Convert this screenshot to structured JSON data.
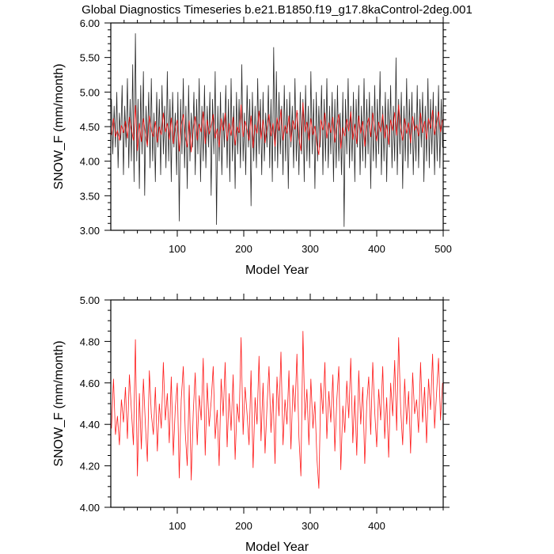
{
  "title": "Global Diagnostics Timeseries b.e21.B1850.f19_g17.8kaControl-2deg.001",
  "colors": {
    "monthly": "#000000",
    "annual": "#ff0000"
  },
  "chart_data": [
    {
      "type": "line",
      "xlabel": "Model Year",
      "ylabel": "SNOW_F (mm/month)",
      "xlim": [
        0,
        500
      ],
      "ylim": [
        3.0,
        6.0
      ],
      "x_ticks": [
        100,
        200,
        300,
        400,
        500
      ],
      "x_tick_labels": [
        "100",
        "200",
        "300",
        "400",
        "500"
      ],
      "y_ticks": [
        3.0,
        3.5,
        4.0,
        4.5,
        5.0,
        5.5,
        6.0
      ],
      "y_tick_labels": [
        "3.00",
        "3.50",
        "4.00",
        "4.50",
        "5.00",
        "5.50",
        "6.00"
      ],
      "grid": false,
      "series": [
        {
          "color": "#000000",
          "x_start": 1,
          "x_step": 2,
          "values": [
            4.9,
            4.1,
            4.8,
            4.2,
            5.0,
            3.9,
            4.7,
            4.3,
            5.1,
            3.8,
            4.8,
            4.2,
            5.2,
            3.9,
            4.9,
            4.0,
            5.4,
            3.7,
            5.85,
            4.0,
            4.9,
            3.6,
            5.1,
            4.1,
            5.3,
            3.5,
            4.8,
            4.2,
            5.0,
            3.9,
            5.2,
            4.0,
            4.7,
            3.7,
            5.0,
            4.2,
            4.9,
            3.8,
            5.1,
            4.1,
            4.8,
            3.9,
            5.3,
            4.0,
            4.9,
            3.7,
            5.0,
            4.2,
            4.7,
            3.8,
            5.0,
            3.13,
            4.9,
            4.1,
            5.2,
            3.9,
            4.8,
            3.6,
            5.1,
            4.0,
            4.7,
            4.2,
            5.0,
            3.8,
            4.9,
            4.1,
            5.2,
            3.7,
            4.8,
            4.0,
            5.1,
            3.9,
            4.8,
            4.2,
            5.0,
            3.5,
            4.9,
            4.1,
            5.3,
            3.08,
            4.8,
            4.0,
            5.0,
            3.8,
            4.7,
            4.2,
            5.1,
            3.9,
            4.9,
            3.7,
            5.2,
            4.0,
            4.8,
            3.6,
            5.0,
            4.1,
            4.9,
            3.9,
            5.4,
            4.0,
            4.7,
            3.8,
            5.1,
            4.2,
            4.9,
            3.35,
            5.0,
            4.0,
            4.8,
            3.9,
            5.2,
            4.1,
            4.9,
            3.8,
            5.0,
            4.0,
            4.7,
            4.2,
            5.1,
            3.9,
            4.9,
            3.7,
            5.65,
            4.0,
            5.3,
            3.9,
            5.0,
            4.1,
            4.8,
            3.8,
            5.1,
            4.0,
            4.9,
            3.6,
            5.0,
            4.2,
            4.8,
            3.9,
            5.2,
            4.0,
            4.7,
            3.8,
            5.0,
            4.1,
            4.9,
            3.7,
            5.1,
            4.0,
            4.8,
            3.9,
            5.3,
            4.1,
            4.9,
            3.6,
            5.0,
            4.0,
            4.8,
            4.2,
            5.1,
            3.8,
            4.9,
            4.0,
            5.2,
            3.9,
            4.8,
            4.1,
            5.0,
            3.7,
            4.9,
            3.9,
            5.1,
            4.0,
            4.7,
            3.8,
            5.0,
            3.05,
            4.9,
            4.1,
            5.2,
            3.9,
            4.8,
            4.0,
            5.0,
            3.7,
            4.9,
            4.2,
            5.1,
            3.8,
            4.8,
            4.0,
            5.2,
            3.9,
            4.9,
            4.1,
            5.0,
            3.6,
            4.8,
            4.0,
            5.1,
            3.9,
            4.9,
            4.1,
            5.3,
            3.8,
            4.8,
            4.0,
            5.0,
            3.7,
            4.9,
            4.2,
            5.1,
            3.9,
            4.8,
            4.0,
            5.5,
            3.8,
            4.9,
            4.1,
            5.0,
            3.6,
            4.8,
            4.0,
            5.2,
            3.9,
            4.9,
            4.1,
            5.0,
            3.8,
            4.7,
            4.0,
            5.1,
            3.9,
            4.9,
            4.2,
            5.0,
            3.7,
            4.8,
            4.0,
            5.2,
            3.9,
            4.9,
            4.1,
            5.0,
            3.8,
            4.8,
            4.0,
            5.1,
            3.9,
            4.9,
            4.2
          ]
        },
        {
          "color": "#ff0000",
          "x_start": 1,
          "x_step": 3,
          "ref": "annual"
        }
      ]
    },
    {
      "type": "line",
      "xlabel": "Model Year",
      "ylabel": "SNOW_F (mm/month)",
      "xlim": [
        0,
        500
      ],
      "ylim": [
        4.0,
        5.0
      ],
      "x_ticks": [
        100,
        200,
        300,
        400
      ],
      "x_tick_labels": [
        "100",
        "200",
        "300",
        "400"
      ],
      "y_ticks": [
        4.0,
        4.2,
        4.4,
        4.6,
        4.8,
        5.0
      ],
      "y_tick_labels": [
        "4.00",
        "4.20",
        "4.40",
        "4.60",
        "4.80",
        "5.00"
      ],
      "grid": false,
      "series": [
        {
          "color": "#ff0000",
          "x_start": 1,
          "x_step": 3,
          "values": [
            4.38,
            4.62,
            4.35,
            4.44,
            4.3,
            4.52,
            4.41,
            4.58,
            4.33,
            4.64,
            4.47,
            4.3,
            4.81,
            4.15,
            4.55,
            4.28,
            4.62,
            4.4,
            4.22,
            4.66,
            4.45,
            4.35,
            4.58,
            4.27,
            4.5,
            4.38,
            4.7,
            4.42,
            4.55,
            4.31,
            4.63,
            4.25,
            4.48,
            4.6,
            4.14,
            4.52,
            4.68,
            4.36,
            4.2,
            4.59,
            4.13,
            4.46,
            4.65,
            4.3,
            4.54,
            4.42,
            4.72,
            4.25,
            4.6,
            4.39,
            4.51,
            4.68,
            4.33,
            4.47,
            4.2,
            4.62,
            4.44,
            4.7,
            4.29,
            4.55,
            4.37,
            4.64,
            4.23,
            4.5,
            4.41,
            4.82,
            4.35,
            4.58,
            4.45,
            4.3,
            4.66,
            4.19,
            4.53,
            4.4,
            4.73,
            4.32,
            4.6,
            4.26,
            4.49,
            4.68,
            4.36,
            4.55,
            4.21,
            4.63,
            4.44,
            4.75,
            4.3,
            4.52,
            4.4,
            4.66,
            4.28,
            4.59,
            4.46,
            4.74,
            4.34,
            4.15,
            4.85,
            4.42,
            4.57,
            4.3,
            4.62,
            4.38,
            4.51,
            4.24,
            4.09,
            4.6,
            4.45,
            4.7,
            4.33,
            4.56,
            4.41,
            4.64,
            4.27,
            4.52,
            4.68,
            4.18,
            4.49,
            4.36,
            4.61,
            4.43,
            4.72,
            4.31,
            4.54,
            4.25,
            4.66,
            4.4,
            4.58,
            4.21,
            4.5,
            4.63,
            4.35,
            4.7,
            4.46,
            4.29,
            4.57,
            4.42,
            4.68,
            4.33,
            4.53,
            4.24,
            4.6,
            4.44,
            4.71,
            4.37,
            4.82,
            4.48,
            4.3,
            4.62,
            4.4,
            4.56,
            4.26,
            4.65,
            4.45,
            4.52,
            4.36,
            4.7,
            4.41,
            4.58,
            4.31,
            4.62,
            4.47,
            4.74,
            4.38,
            4.55,
            4.72,
            4.42,
            4.6
          ]
        }
      ]
    }
  ]
}
